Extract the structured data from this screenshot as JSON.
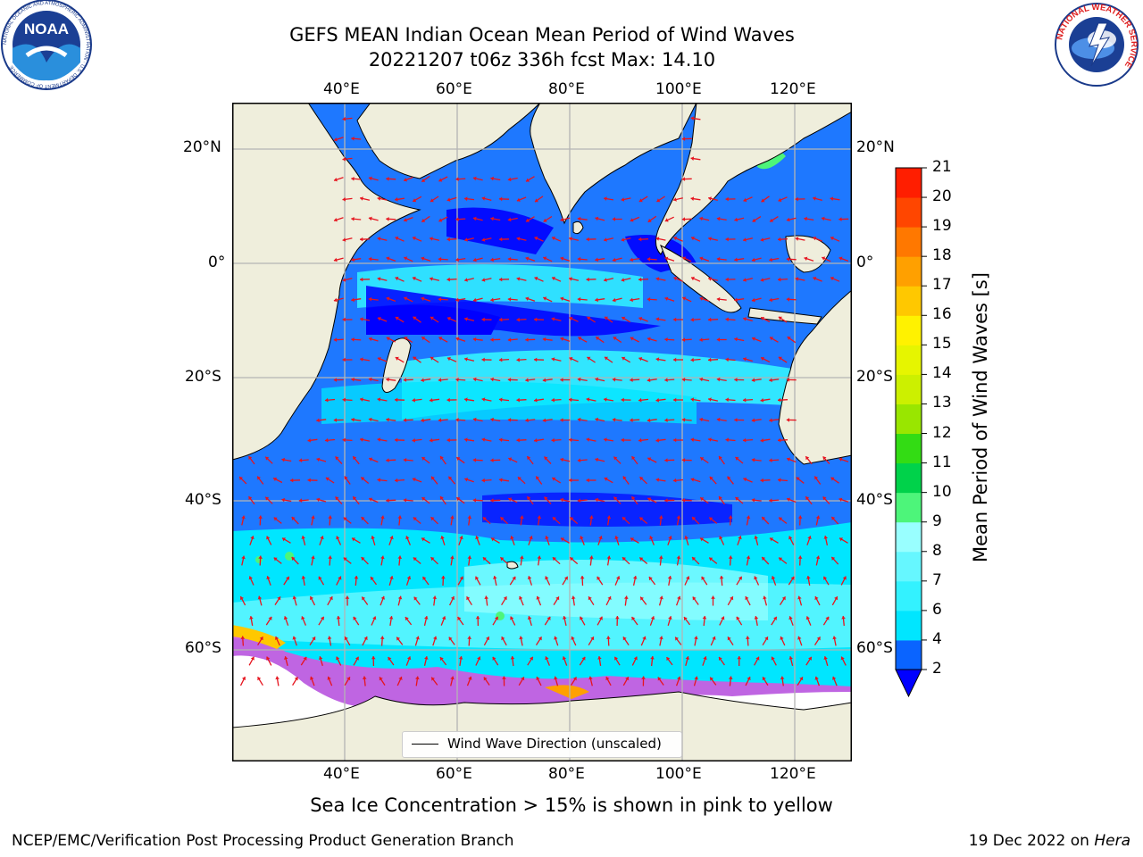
{
  "title_line1": "GEFS MEAN Indian Ocean Mean Period of Wind Waves",
  "title_line2": "20221207 t06z 336h fcst   Max: 14.10",
  "logos": {
    "left": "NOAA",
    "left_ring": "NATIONAL OCEANIC AND ATMOSPHERIC ADMINISTRATION · U.S. DEPARTMENT OF COMMERCE",
    "right_ring": "NATIONAL WEATHER SERVICE"
  },
  "lon_labels": [
    "40°E",
    "60°E",
    "80°E",
    "100°E",
    "120°E"
  ],
  "lat_labels": [
    "20°N",
    "0°",
    "20°S",
    "40°S",
    "60°S"
  ],
  "legend_label": "Wind Wave Direction (unscaled)",
  "colorbar": {
    "label": "Mean Period of Wind Waves [s]",
    "ticks": [
      "2",
      "4",
      "6",
      "7",
      "8",
      "9",
      "10",
      "11",
      "12",
      "13",
      "14",
      "15",
      "16",
      "17",
      "18",
      "19",
      "20",
      "21"
    ],
    "colors": [
      "#0a64ff",
      "#00e6ff",
      "#33f2ff",
      "#66f7ff",
      "#99ffff",
      "#4df57a",
      "#00d24a",
      "#33dc14",
      "#99e600",
      "#ccf000",
      "#e6f500",
      "#fff200",
      "#ffc800",
      "#ffa000",
      "#ff7800",
      "#ff4600",
      "#ff1e00"
    ],
    "extend_color": "#0000ff"
  },
  "caption": "Sea Ice Concentration > 15% is shown in pink to yellow",
  "footer_left": "NCEP/EMC/Verification Post Processing Product Generation Branch",
  "footer_right_date": "19 Dec 2022 on ",
  "footer_right_host": "Hera",
  "colors": {
    "land": "#efeedc",
    "deep_blue": "#0000ff",
    "blue": "#1e78ff",
    "cyan": "#00e8ff",
    "light_cyan": "#7ff8ff",
    "ice": "#ff3ad8",
    "arrow": "#e6141e",
    "grid": "#b4b4b4"
  }
}
